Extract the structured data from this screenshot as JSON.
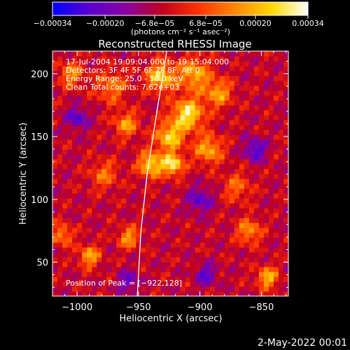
{
  "chart_data": {
    "type": "heatmap",
    "title": "Reconstructed RHESSI Image",
    "xlabel": "Heliocentric X (arcsec)",
    "ylabel": "Heliocentric Y (arcsec)",
    "xlim": [
      -1020,
      -828
    ],
    "ylim": [
      23,
      218
    ],
    "xticks": [
      -1000,
      -950,
      -900,
      -850
    ],
    "xtick_labels": [
      "−1000",
      "−950",
      "−900",
      "−850"
    ],
    "yticks": [
      50,
      100,
      150,
      200
    ],
    "ytick_labels": [
      "50",
      "100",
      "150",
      "200"
    ],
    "colorbar": {
      "range": [
        -0.00034,
        0.00034
      ],
      "ticks": [
        -0.00034,
        -0.0002,
        -6.8e-05,
        6.8e-05,
        0.0002,
        0.00034
      ],
      "tick_labels": [
        "−0.00034",
        "−0.00020",
        "−6.8e−05",
        "6.8e−05",
        "0.00020",
        "0.00034"
      ],
      "unit_label": "(photons cm⁻² s⁻¹ asec⁻²)",
      "colors": [
        "#0000ff",
        "#5a00d0",
        "#8a00a0",
        "#c00020",
        "#ff3300",
        "#ff8800",
        "#ffd800",
        "#ffffff"
      ]
    },
    "info_lines": [
      "17-Jul-2004 19:09:04.000 to 19:15:04.000",
      "Detectors: 3F 4F 5F 6F 7F 8F, Att 0",
      "Energy Range: 25.0 - 50.0 keV",
      "Clean     Total counts: 7.62e+03"
    ],
    "peak_label": "Position of Peak = [−922,128]",
    "peak": [
      -922,
      128
    ],
    "sources": [
      {
        "x": -932,
        "y": 198,
        "amp": 0.0003,
        "sigma": 8
      },
      {
        "x": -910,
        "y": 168,
        "amp": 0.00033,
        "sigma": 9
      },
      {
        "x": -925,
        "y": 150,
        "amp": 0.00029,
        "sigma": 8
      },
      {
        "x": -940,
        "y": 128,
        "amp": 0.00031,
        "sigma": 7
      },
      {
        "x": -922,
        "y": 128,
        "amp": 0.00034,
        "sigma": 6
      },
      {
        "x": -905,
        "y": 200,
        "amp": 0.00025,
        "sigma": 9
      },
      {
        "x": -885,
        "y": 185,
        "amp": 0.00022,
        "sigma": 8
      },
      {
        "x": -893,
        "y": 140,
        "amp": 0.00024,
        "sigma": 8
      },
      {
        "x": -960,
        "y": 160,
        "amp": 0.00022,
        "sigma": 7
      },
      {
        "x": -972,
        "y": 190,
        "amp": 0.00018,
        "sigma": 9
      },
      {
        "x": -978,
        "y": 120,
        "amp": 0.00016,
        "sigma": 8
      },
      {
        "x": -1005,
        "y": 200,
        "amp": 0.0002,
        "sigma": 7
      },
      {
        "x": -958,
        "y": 70,
        "amp": 0.00022,
        "sigma": 6
      },
      {
        "x": -990,
        "y": 55,
        "amp": 0.00024,
        "sigma": 6
      },
      {
        "x": -1012,
        "y": 72,
        "amp": 0.0002,
        "sigma": 6
      },
      {
        "x": -860,
        "y": 75,
        "amp": 0.00021,
        "sigma": 7
      },
      {
        "x": -845,
        "y": 38,
        "amp": 0.00026,
        "sigma": 6
      },
      {
        "x": -870,
        "y": 110,
        "amp": 0.00015,
        "sigma": 8
      },
      {
        "x": -1000,
        "y": 165,
        "amp": -0.0002,
        "sigma": 6
      },
      {
        "x": -900,
        "y": 100,
        "amp": -0.00018,
        "sigma": 7
      },
      {
        "x": -855,
        "y": 140,
        "amp": -0.00022,
        "sigma": 6
      },
      {
        "x": -895,
        "y": 40,
        "amp": -0.00018,
        "sigma": 6
      },
      {
        "x": -958,
        "y": 35,
        "amp": -0.00016,
        "sigma": 6
      }
    ],
    "limb_curve": [
      [
        -927,
        218
      ],
      [
        -935,
        170
      ],
      [
        -943,
        120
      ],
      [
        -948,
        75
      ],
      [
        -951,
        23
      ]
    ]
  },
  "timestamp": "2-May-2022 00:01"
}
